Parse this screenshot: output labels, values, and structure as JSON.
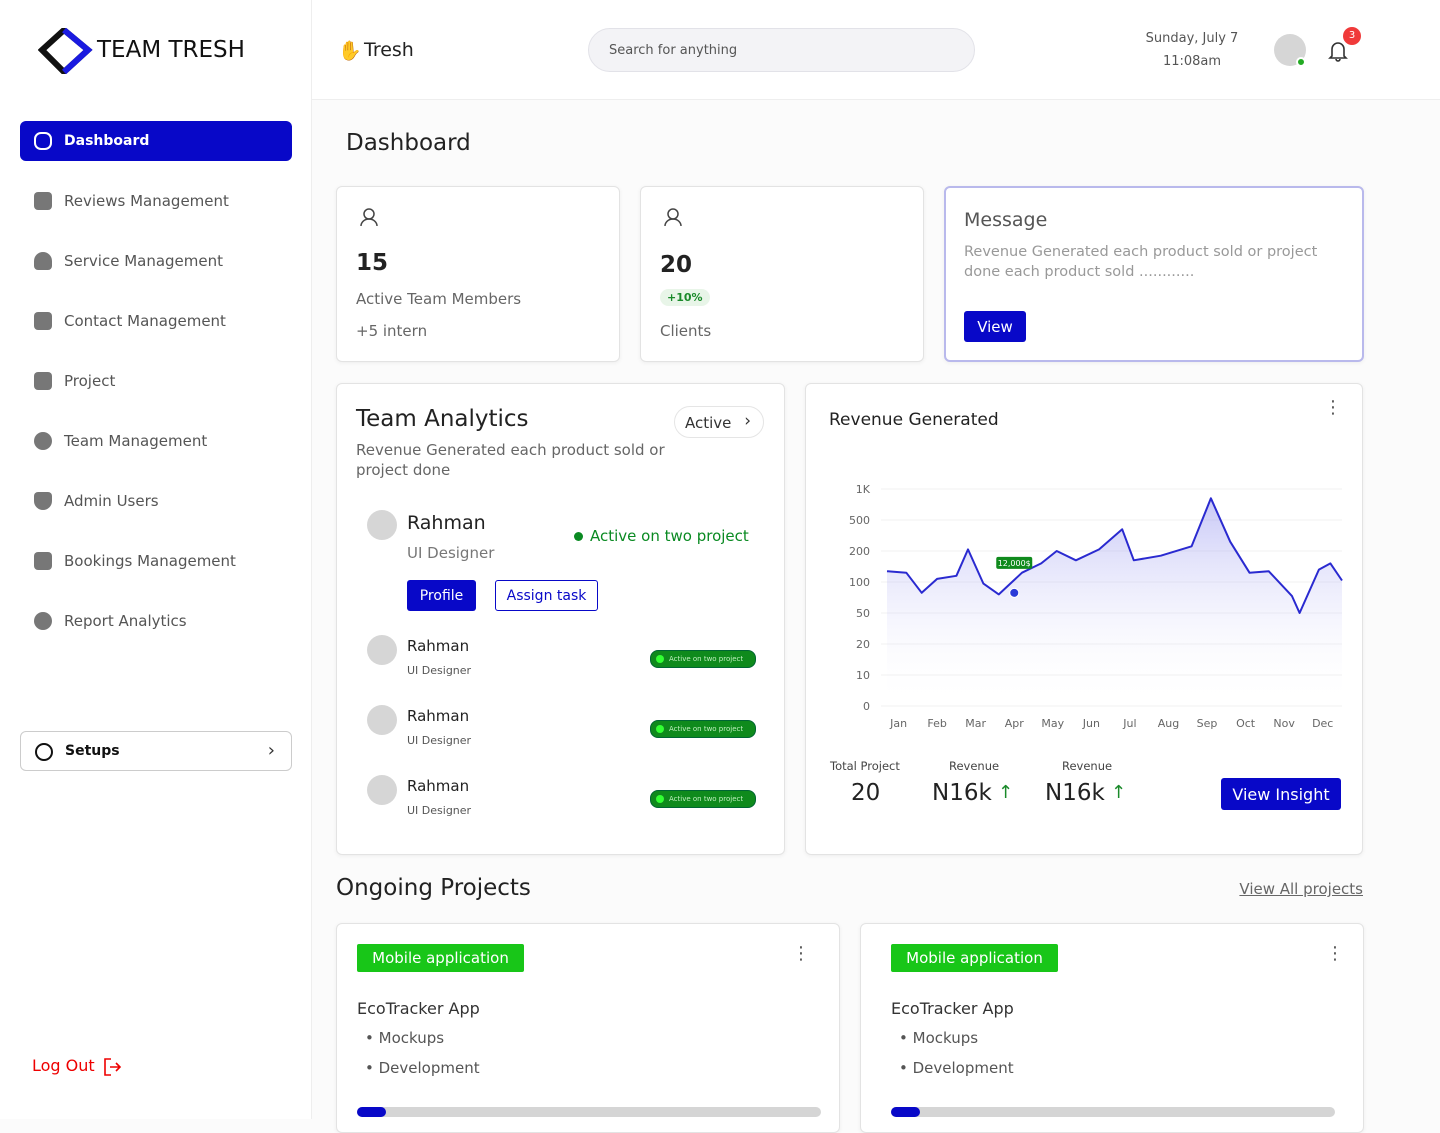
{
  "sidebar": {
    "brand": "TEAM TRESH",
    "nav": [
      "Dashboard",
      "Reviews Management",
      "Service Management",
      "Contact Management",
      "Project",
      "Team Management",
      "Admin Users",
      "Bookings Management",
      "Report Analytics"
    ],
    "setups": "Setups",
    "logout": "Log Out"
  },
  "header": {
    "greeting": "Tresh",
    "search_placeholder": "Search for anything",
    "date": "Sunday, July 7",
    "time": "11:08am",
    "notifications": 3
  },
  "page_title": "Dashboard",
  "stats": [
    {
      "value": 15,
      "label": "Active Team Members",
      "note": "+5 intern"
    },
    {
      "value": 20,
      "badge": "+10%",
      "label": "Clients"
    }
  ],
  "message": {
    "title": "Message",
    "text": "Revenue Generated each product sold or project done each product sold ............",
    "button": "View"
  },
  "team_analytics": {
    "title": "Team Analytics",
    "subtitle": "Revenue Generated each product sold or project done",
    "filter": "Active",
    "featured": {
      "name": "Rahman",
      "role": "UI Designer",
      "status": "Active on two project",
      "buttons": [
        "Profile",
        "Assign task"
      ]
    },
    "members": [
      {
        "name": "Rahman",
        "role": "UI Designer",
        "badge": "Active on two project"
      },
      {
        "name": "Rahman",
        "role": "UI Designer",
        "badge": "Active on two project"
      },
      {
        "name": "Rahman",
        "role": "UI Designer",
        "badge": "Active on two project"
      }
    ]
  },
  "revenue": {
    "title": "Revenue Generated",
    "summary": [
      {
        "label": "Total Project",
        "value": "20"
      },
      {
        "label": "Revenue",
        "value": "N16k"
      },
      {
        "label": "Revenue",
        "value": "N16k"
      }
    ],
    "button": "View Insight"
  },
  "chart_data": {
    "type": "line",
    "x": [
      -0.3,
      0.2,
      0.6,
      1.0,
      1.5,
      1.8,
      2.2,
      2.6,
      3.2,
      3.7,
      4.1,
      4.6,
      5.2,
      5.8,
      6.1,
      6.8,
      7.6,
      8.1,
      8.6,
      9.1,
      9.6,
      10.2,
      10.4,
      10.9,
      11.2,
      11.5
    ],
    "series": [
      {
        "color": "#2a2ad0",
        "values": [
          4.35,
          4.3,
          3.65,
          4.1,
          4.2,
          5.05,
          3.95,
          3.6,
          4.3,
          4.6,
          5.0,
          4.7,
          5.05,
          5.7,
          4.7,
          4.85,
          5.15,
          6.7,
          5.3,
          4.3,
          4.35,
          3.55,
          3.0,
          4.4,
          4.6,
          4.05
        ]
      }
    ],
    "xlim": [
      -0.3,
      11.5
    ],
    "xticks": [
      {
        "value": 0,
        "label": "Jan"
      },
      {
        "value": 1,
        "label": "Feb"
      },
      {
        "value": 2,
        "label": "Mar"
      },
      {
        "value": 3,
        "label": "Apr"
      },
      {
        "value": 4,
        "label": "May"
      },
      {
        "value": 5,
        "label": "Jun"
      },
      {
        "value": 6,
        "label": "Jul"
      },
      {
        "value": 7,
        "label": "Aug"
      },
      {
        "value": 8,
        "label": "Sep"
      },
      {
        "value": 9,
        "label": "Oct"
      },
      {
        "value": 10,
        "label": "Nov"
      },
      {
        "value": 11,
        "label": "Dec"
      }
    ],
    "ylim": [
      0,
      7
    ],
    "yticks": [
      {
        "value": 0,
        "label": "0"
      },
      {
        "value": 1,
        "label": "10"
      },
      {
        "value": 2,
        "label": "20"
      },
      {
        "value": 3,
        "label": "50"
      },
      {
        "value": 4,
        "label": "100"
      },
      {
        "value": 5,
        "label": "200"
      },
      {
        "value": 6,
        "label": "500"
      },
      {
        "value": 7,
        "label": "1K"
      }
    ],
    "grid": true,
    "annotation": {
      "text": "12,000$",
      "x": 3.0,
      "y": 3.65
    }
  },
  "ongoing": {
    "title": "Ongoing Projects",
    "link": "View All projects",
    "projects": [
      {
        "tag": "Mobile application",
        "name": "EcoTracker App",
        "items": [
          "Mockups",
          "Development"
        ]
      },
      {
        "tag": "Mobile application",
        "name": "EcoTracker App",
        "items": [
          "Mockups",
          "Development"
        ]
      }
    ]
  }
}
